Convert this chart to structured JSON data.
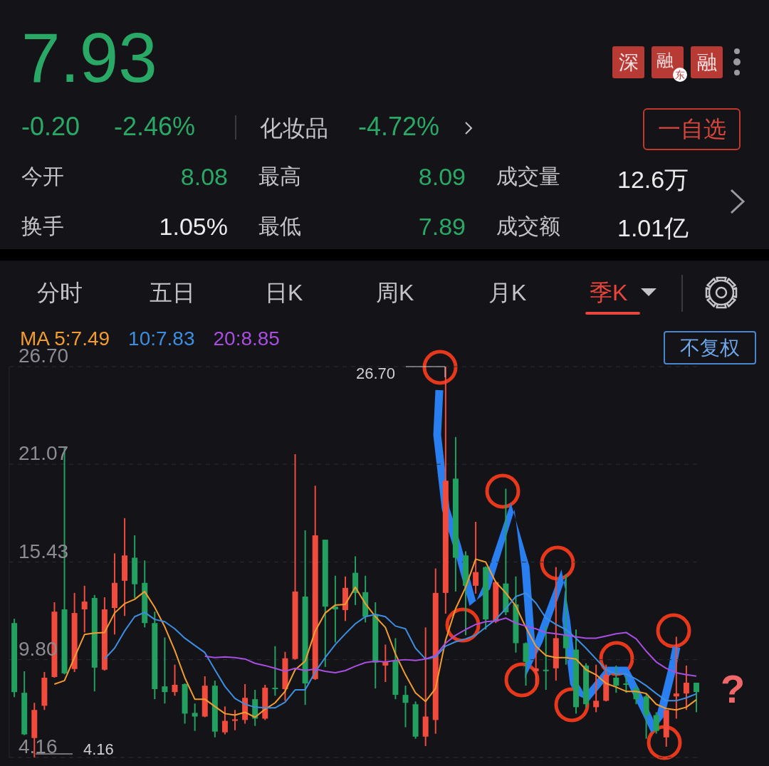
{
  "chart_data": {
    "type": "candlestick",
    "title": "7.93",
    "categories": [
      null,
      null,
      null,
      null,
      null,
      null,
      null,
      null,
      null,
      null,
      null,
      null,
      null,
      null,
      null,
      null,
      null,
      null,
      null,
      null,
      null,
      null,
      null,
      null,
      null,
      null,
      null,
      null,
      null,
      null,
      null,
      null,
      null,
      null,
      null,
      null,
      null,
      null,
      null,
      null,
      null,
      null,
      null,
      null,
      null,
      null,
      null,
      null,
      null,
      null,
      null,
      null,
      null,
      null,
      null,
      null,
      null,
      null,
      null,
      null,
      null,
      null,
      null,
      null,
      null,
      null,
      null,
      null,
      null
    ],
    "ohlc": [
      [
        11.91,
        12.16,
        7.64,
        7.93
      ],
      [
        7.89,
        9.13,
        5.45,
        5.49
      ],
      [
        5.28,
        7.31,
        4.16,
        6.9
      ],
      [
        7.14,
        9.09,
        6.9,
        8.76
      ],
      [
        8.8,
        13.11,
        8.76,
        12.57
      ],
      [
        12.7,
        22.02,
        8.95,
        9.01
      ],
      [
        9.26,
        13.65,
        9.09,
        12.49
      ],
      [
        12.7,
        14.06,
        11.37,
        13.15
      ],
      [
        13.36,
        13.53,
        7.97,
        9.34
      ],
      [
        9.22,
        13.4,
        9.17,
        12.7
      ],
      [
        12.78,
        15.93,
        11.25,
        14.23
      ],
      [
        14.35,
        17.96,
        12.32,
        15.81
      ],
      [
        15.68,
        16.97,
        13.36,
        14.15
      ],
      [
        14.23,
        15.52,
        11.66,
        11.91
      ],
      [
        11.91,
        12.57,
        7.52,
        8.1
      ],
      [
        8.26,
        11.08,
        7.27,
        7.93
      ],
      [
        7.93,
        9.51,
        7.72,
        8.35
      ],
      [
        8.39,
        8.43,
        6.11,
        6.69
      ],
      [
        6.73,
        7.27,
        5.69,
        6.52
      ],
      [
        6.52,
        8.84,
        6.48,
        8.3
      ],
      [
        8.3,
        8.59,
        5.32,
        5.65
      ],
      [
        5.61,
        7.1,
        5.49,
        6.27
      ],
      [
        6.27,
        6.9,
        5.73,
        6.36
      ],
      [
        6.32,
        8.39,
        6.11,
        7.6
      ],
      [
        7.52,
        8.06,
        5.98,
        6.4
      ],
      [
        6.4,
        8.35,
        6.32,
        8.18
      ],
      [
        8.18,
        10.58,
        7.72,
        8.1
      ],
      [
        8.1,
        10.25,
        7.43,
        9.88
      ],
      [
        9.84,
        21.65,
        9.8,
        13.73
      ],
      [
        13.44,
        17.26,
        7.19,
        8.43
      ],
      [
        8.68,
        19.83,
        8.63,
        16.97
      ],
      [
        16.72,
        16.72,
        9.38,
        12.86
      ],
      [
        12.86,
        14.64,
        10.79,
        12.7
      ],
      [
        12.66,
        14.6,
        12.03,
        13.94
      ],
      [
        14.81,
        15.76,
        12.95,
        13.65
      ],
      [
        13.69,
        14.64,
        11.95,
        12.28
      ],
      [
        12.41,
        13.11,
        8.14,
        9.63
      ],
      [
        9.46,
        10.67,
        8.51,
        9.67
      ],
      [
        9.75,
        11.04,
        7.52,
        7.77
      ],
      [
        7.77,
        8.3,
        5.9,
        7.31
      ],
      [
        7.23,
        7.39,
        5.24,
        5.36
      ],
      [
        5.36,
        11.66,
        4.82,
        6.52
      ],
      [
        6.32,
        15.06,
        5.53,
        13.65
      ],
      [
        13.65,
        26.7,
        12.45,
        20.12
      ],
      [
        20.24,
        22.64,
        13.73,
        15.68
      ],
      [
        15.81,
        16.05,
        11.21,
        14.06
      ],
      [
        14.06,
        17.75,
        13.61,
        14.85
      ],
      [
        15.14,
        15.18,
        11.54,
        12.12
      ],
      [
        11.99,
        14.35,
        11.91,
        14.27
      ],
      [
        14.19,
        19.66,
        12.37,
        12.53
      ],
      [
        12.99,
        14.6,
        10.21,
        10.75
      ],
      [
        10.75,
        10.8,
        8.3,
        9.67
      ],
      [
        9.13,
        10.58,
        8.3,
        9.3
      ],
      [
        9.22,
        11.74,
        8.06,
        9.17
      ],
      [
        9.3,
        15.14,
        8.59,
        11.04
      ],
      [
        11.21,
        14.73,
        9.51,
        10.46
      ],
      [
        10.38,
        11.54,
        6.69,
        7.06
      ],
      [
        9.46,
        9.59,
        7.02,
        7.23
      ],
      [
        7.06,
        9.51,
        6.77,
        7.43
      ],
      [
        7.43,
        9.51,
        7.39,
        8.93
      ],
      [
        8.76,
        9.46,
        7.89,
        8.3
      ],
      [
        8.43,
        8.84,
        7.89,
        8.35
      ],
      [
        8.14,
        8.3,
        7.23,
        7.52
      ],
      [
        7.68,
        7.85,
        5.24,
        6.6
      ],
      [
        6.6,
        6.77,
        5.53,
        5.69
      ],
      [
        5.32,
        6.9,
        4.78,
        6.9
      ],
      [
        7.68,
        11.12,
        6.4,
        7.85
      ],
      [
        7.85,
        9.46,
        6.9,
        8.47
      ],
      [
        8.47,
        8.47,
        6.77,
        7.93
      ]
    ],
    "colors": [
      "#22a060",
      "#22a060",
      "#f04b3c",
      "#f04b3c",
      "#f04b3c",
      "#22a060",
      "#f04b3c",
      "#f04b3c",
      "#22a060",
      "#f04b3c",
      "#f04b3c",
      "#f04b3c",
      "#22a060",
      "#22a060",
      "#22a060",
      "#22a060",
      "#f04b3c",
      "#22a060",
      "#22a060",
      "#f04b3c",
      "#22a060",
      "#f04b3c",
      "#f04b3c",
      "#f04b3c",
      "#22a060",
      "#f04b3c",
      "#22a060",
      "#f04b3c",
      "#f04b3c",
      "#22a060",
      "#f04b3c",
      "#22a060",
      "#22a060",
      "#f04b3c",
      "#22a060",
      "#22a060",
      "#22a060",
      "#f04b3c",
      "#22a060",
      "#22a060",
      "#22a060",
      "#f04b3c",
      "#f04b3c",
      "#f04b3c",
      "#22a060",
      "#22a060",
      "#f04b3c",
      "#22a060",
      "#f04b3c",
      "#22a060",
      "#22a060",
      "#22a060",
      "#f04b3c",
      "#22a060",
      "#f04b3c",
      "#22a060",
      "#22a060",
      "#22a060",
      "#f04b3c",
      "#f04b3c",
      "#22a060",
      "#22a060",
      "#22a060",
      "#22a060",
      "#22a060",
      "#f04b3c",
      "#f04b3c",
      "#f04b3c",
      "#22a060"
    ],
    "series": [
      {
        "name": "MA 5:7.49",
        "type": "line",
        "color": "#f39c2e",
        "values": [
          null,
          null,
          null,
          null,
          8.39,
          8.59,
          9.92,
          11.25,
          11.33,
          11.37,
          12.49,
          13.03,
          13.28,
          13.73,
          12.82,
          11.7,
          10.33,
          8.76,
          7.52,
          7.52,
          7.1,
          6.69,
          6.6,
          6.77,
          6.48,
          6.94,
          7.31,
          7.97,
          9.22,
          9.71,
          11.45,
          12.49,
          12.95,
          12.99,
          13.98,
          13.03,
          12.28,
          11.66,
          10.13,
          8.93,
          7.89,
          7.39,
          8.14,
          10.92,
          12.74,
          13.98,
          15.6,
          15.43,
          14.27,
          13.65,
          12.9,
          11.66,
          10.58,
          10.04,
          9.92,
          9.92,
          9.84,
          9.22,
          8.93,
          8.43,
          8.22,
          7.97,
          7.97,
          7.85,
          7.23,
          6.98,
          6.9,
          7.06,
          7.49
        ]
      },
      {
        "name": "10:7.83",
        "type": "line",
        "color": "#3c8fe0",
        "values": [
          null,
          null,
          null,
          null,
          null,
          null,
          null,
          null,
          null,
          9.84,
          10.46,
          11.45,
          12.28,
          12.53,
          12.12,
          11.99,
          11.58,
          11.04,
          10.62,
          10.21,
          9.22,
          8.26,
          7.56,
          7.23,
          7.06,
          7.02,
          7.02,
          7.35,
          8.06,
          8.06,
          9.09,
          9.92,
          10.67,
          11.29,
          11.87,
          12.28,
          12.41,
          12.28,
          11.74,
          11.58,
          10.46,
          9.84,
          9.96,
          10.58,
          10.83,
          11.0,
          11.21,
          11.66,
          12.12,
          12.74,
          13.44,
          13.65,
          13.07,
          12.2,
          11.83,
          11.54,
          11.04,
          10.46,
          9.84,
          9.22,
          8.97,
          8.97,
          8.68,
          8.3,
          7.85,
          7.43,
          7.43,
          7.6,
          7.83
        ]
      },
      {
        "name": "20:8.85",
        "type": "line",
        "color": "#a84ee0",
        "values": [
          null,
          null,
          null,
          null,
          null,
          null,
          null,
          null,
          null,
          null,
          null,
          null,
          null,
          null,
          null,
          null,
          null,
          null,
          null,
          10.0,
          9.92,
          9.96,
          9.92,
          9.84,
          9.59,
          9.46,
          9.3,
          9.13,
          9.3,
          9.17,
          9.26,
          9.13,
          9.05,
          9.17,
          9.42,
          9.63,
          9.71,
          9.67,
          9.75,
          9.8,
          9.75,
          9.84,
          10.04,
          10.75,
          11.21,
          11.54,
          11.83,
          11.99,
          12.03,
          12.2,
          11.91,
          11.74,
          11.58,
          11.37,
          11.29,
          11.21,
          11.12,
          11.04,
          11.04,
          11.16,
          11.29,
          11.37,
          11.0,
          10.29,
          9.67,
          9.3,
          9.05,
          8.93,
          8.85
        ]
      }
    ],
    "ylim": [
      4.16,
      26.7
    ],
    "yticks": [
      4.16,
      {
        "value": 9.8,
        "label": "9.80"
      },
      15.43,
      21.07,
      {
        "value": 26.7,
        "label": "26.70"
      }
    ],
    "grid": "y",
    "legend": "top left",
    "tick_labels": "y",
    "marker": "none",
    "line_style": "solid",
    "annotations": [
      "-0.20",
      "-2.46%",
      "化妆品",
      "-4.72%",
      "今开",
      "8.08",
      "最高",
      "8.09",
      "成交量",
      "12.6万",
      "换手",
      "1.05%",
      "最低",
      "7.89",
      "成交额",
      "1.01亿",
      "分时",
      "五日",
      "日K",
      "周K",
      "月K",
      "季K",
      "不复权",
      "深",
      "融",
      "东",
      "融",
      "一自选",
      "?",
      "26.70",
      "4.16"
    ]
  }
}
